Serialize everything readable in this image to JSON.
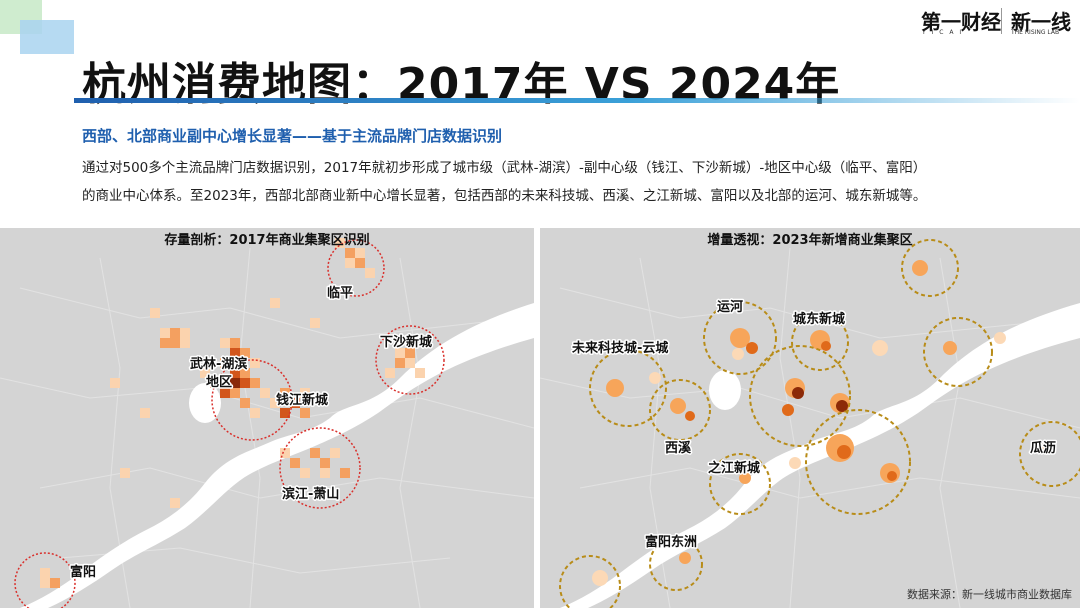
{
  "header": {
    "title": "杭州消费地图：2017年 VS 2024年",
    "logos": [
      {
        "name": "第一财经",
        "sub": "Y I C A I"
      },
      {
        "name": "新一线",
        "sub": "THE RISING LAB"
      }
    ]
  },
  "intro": {
    "subtitle": "西部、北部商业副中心增长显著——基于主流品牌门店数据识别",
    "line1": "通过对500多个主流品牌门店数据识别，2017年就初步形成了城市级（武林-湖滨）-副中心级（钱江、下沙新城）-地区中心级（临平、富阳）",
    "line2": "的商业中心体系。至2023年，西部北部商业新中心增长显著，包括西部的未来科技城、西溪、之江新城、富阳以及北部的运河、城东新城等。"
  },
  "map_2017": {
    "heading": "存量剖析：2017年商业集聚区识别",
    "labels": {
      "linping": "临平",
      "xiasha": "下沙新城",
      "wulin_1": "武林-湖滨",
      "wulin_2": "地区",
      "qianjiang": "钱江新城",
      "binjiang": "滨江-萧山",
      "fuyang": "富阳"
    },
    "colors": {
      "circle": "#d9302c",
      "low": "#fbd3ae",
      "mid": "#f4a060",
      "high": "#d2561c",
      "top": "#8a2a0a"
    }
  },
  "map_2024": {
    "heading": "增量透视：2023年新增商业集聚区",
    "labels": {
      "yunhe": "运河",
      "chengdong": "城东新城",
      "weilai": "未来科技城-云城",
      "xixi": "西溪",
      "zhijiang": "之江新城",
      "guali": "瓜沥",
      "fuyang_dongzhou": "富阳东洲"
    },
    "colors": {
      "circle": "#b88c18",
      "low": "#fcd9b6",
      "mid": "#f7a55a",
      "high": "#e06a1a",
      "top": "#8c2a08"
    }
  },
  "footer": {
    "source": "数据来源：新一线城市商业数据库"
  }
}
